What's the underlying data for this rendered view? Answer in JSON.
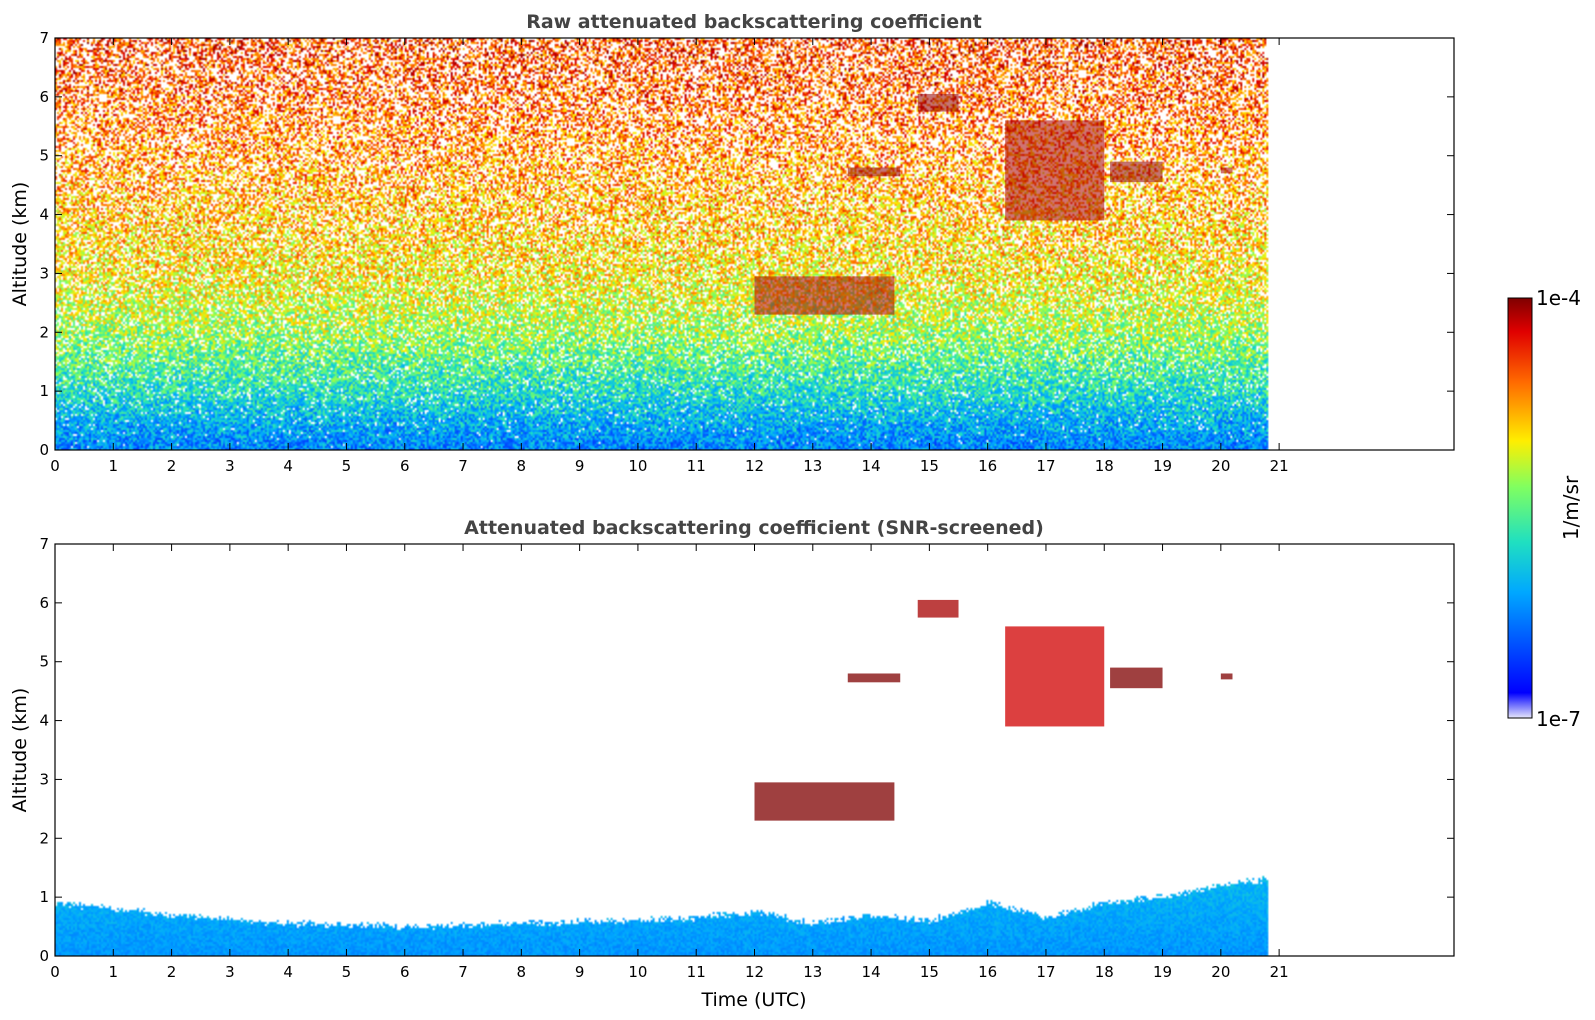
{
  "chart_data": [
    {
      "type": "heatmap",
      "title": "Raw attenuated backscattering coefficient",
      "xlabel": "",
      "ylabel": "Altitude (km)",
      "xlim": [
        0,
        24
      ],
      "ylim": [
        0,
        7
      ],
      "x_ticks": [
        "0",
        "1",
        "2",
        "3",
        "4",
        "5",
        "6",
        "7",
        "8",
        "9",
        "10",
        "11",
        "12",
        "13",
        "14",
        "15",
        "16",
        "17",
        "18",
        "19",
        "20",
        "21"
      ],
      "y_ticks": [
        "0",
        "1",
        "2",
        "3",
        "4",
        "5",
        "6",
        "7"
      ],
      "data_end_time": 20.8,
      "background_profile": [
        {
          "altitude": 0.0,
          "log10_value": -6.3
        },
        {
          "altitude": 0.5,
          "log10_value": -6.05
        },
        {
          "altitude": 1.0,
          "log10_value": -5.75
        },
        {
          "altitude": 2.0,
          "log10_value": -5.3
        },
        {
          "altitude": 3.0,
          "log10_value": -5.0
        },
        {
          "altitude": 4.0,
          "log10_value": -4.85
        },
        {
          "altitude": 5.0,
          "log10_value": -4.7
        },
        {
          "altitude": 6.0,
          "log10_value": -4.55
        },
        {
          "altitude": 7.0,
          "log10_value": -4.45
        }
      ],
      "cloud_features": [
        {
          "time_start": 12.0,
          "time_end": 14.4,
          "altitude_bottom": 2.3,
          "altitude_top": 2.95,
          "log10_value": -4.1
        },
        {
          "time_start": 13.6,
          "time_end": 14.5,
          "altitude_bottom": 4.65,
          "altitude_top": 4.8,
          "log10_value": -4.05
        },
        {
          "time_start": 14.8,
          "time_end": 15.5,
          "altitude_bottom": 5.75,
          "altitude_top": 6.05,
          "log10_value": -4.05
        },
        {
          "time_start": 16.3,
          "time_end": 18.0,
          "altitude_bottom": 3.9,
          "altitude_top": 5.6,
          "log10_value": -4.1
        },
        {
          "time_start": 18.1,
          "time_end": 19.0,
          "altitude_bottom": 4.55,
          "altitude_top": 4.9,
          "log10_value": -4.05
        },
        {
          "time_start": 20.0,
          "time_end": 20.2,
          "altitude_bottom": 4.7,
          "altitude_top": 4.8,
          "log10_value": -4.1
        }
      ]
    },
    {
      "type": "heatmap",
      "title": "Attenuated backscattering coefficient (SNR-screened)",
      "xlabel": "Time (UTC)",
      "ylabel": "Altitude (km)",
      "xlim": [
        0,
        24
      ],
      "ylim": [
        0,
        7
      ],
      "x_ticks": [
        "0",
        "1",
        "2",
        "3",
        "4",
        "5",
        "6",
        "7",
        "8",
        "9",
        "10",
        "11",
        "12",
        "13",
        "14",
        "15",
        "16",
        "17",
        "18",
        "19",
        "20",
        "21"
      ],
      "y_ticks": [
        "0",
        "1",
        "2",
        "3",
        "4",
        "5",
        "6",
        "7"
      ],
      "data_end_time": 20.8,
      "boundary_layer_top": [
        {
          "time": 0,
          "altitude": 0.9
        },
        {
          "time": 2,
          "altitude": 0.7
        },
        {
          "time": 4,
          "altitude": 0.55
        },
        {
          "time": 6,
          "altitude": 0.5
        },
        {
          "time": 8,
          "altitude": 0.55
        },
        {
          "time": 10,
          "altitude": 0.6
        },
        {
          "time": 11,
          "altitude": 0.65
        },
        {
          "time": 12,
          "altitude": 0.75
        },
        {
          "time": 13,
          "altitude": 0.55
        },
        {
          "time": 14,
          "altitude": 0.7
        },
        {
          "time": 15,
          "altitude": 0.6
        },
        {
          "time": 16,
          "altitude": 0.9
        },
        {
          "time": 17,
          "altitude": 0.65
        },
        {
          "time": 18,
          "altitude": 0.9
        },
        {
          "time": 19,
          "altitude": 1.0
        },
        {
          "time": 20,
          "altitude": 1.2
        },
        {
          "time": 20.8,
          "altitude": 1.3
        }
      ],
      "cloud_features": [
        {
          "time_start": 12.0,
          "time_end": 14.4,
          "altitude_bottom": 2.3,
          "altitude_top": 2.95,
          "log10_value": -4.0
        },
        {
          "time_start": 13.6,
          "time_end": 14.5,
          "altitude_bottom": 4.65,
          "altitude_top": 4.8,
          "log10_value": -4.0
        },
        {
          "time_start": 14.8,
          "time_end": 15.5,
          "altitude_bottom": 5.75,
          "altitude_top": 6.05,
          "log10_value": -4.1
        },
        {
          "time_start": 16.3,
          "time_end": 18.0,
          "altitude_bottom": 3.9,
          "altitude_top": 5.6,
          "log10_value": -4.2
        },
        {
          "time_start": 18.1,
          "time_end": 19.0,
          "altitude_bottom": 4.55,
          "altitude_top": 4.9,
          "log10_value": -4.0
        },
        {
          "time_start": 20.0,
          "time_end": 20.2,
          "altitude_bottom": 4.7,
          "altitude_top": 4.8,
          "log10_value": -4.0
        }
      ]
    }
  ],
  "colorbar": {
    "label": "1/m/sr",
    "max_label": "1e-4",
    "min_label": "1e-7",
    "scale": "log",
    "range": [
      1e-07,
      0.0001
    ],
    "colormap": "jet"
  },
  "colors": {
    "title_gray": "#444444",
    "cloud_dark_red": "#7f0000"
  }
}
